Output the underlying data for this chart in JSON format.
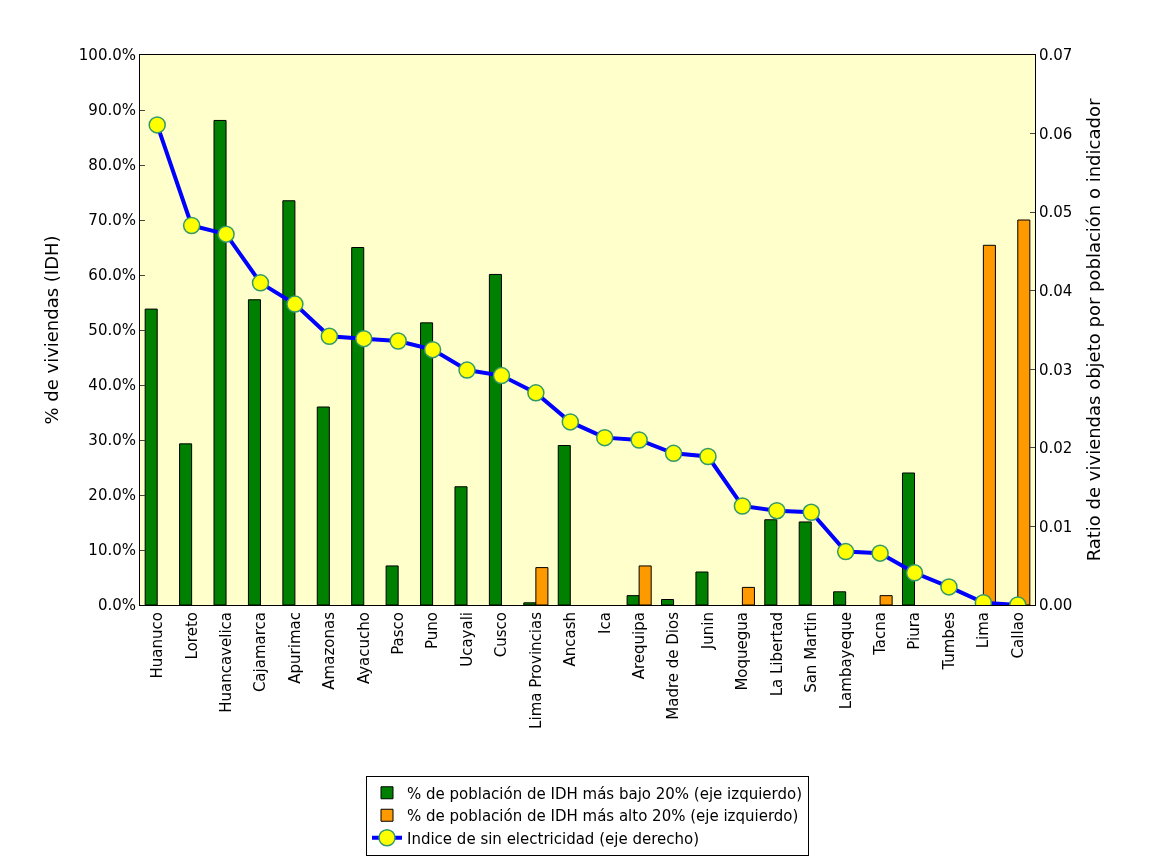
{
  "chart_data": {
    "type": "bar",
    "categories": [
      "Huanuco",
      "Loreto",
      "Huancavelica",
      "Cajamarca",
      "Apurimac",
      "Amazonas",
      "Ayacucho",
      "Pasco",
      "Puno",
      "Ucayali",
      "Cusco",
      "Lima Provincias",
      "Ancash",
      "Ica",
      "Arequipa",
      "Madre de Dios",
      "Junin",
      "Moquegua",
      "La Libertad",
      "San Martin",
      "Lambayeque",
      "Tacna",
      "Piura",
      "Tumbes",
      "Lima",
      "Callao"
    ],
    "series": [
      {
        "name": "% de población de IDH más bajo 20% (eje izquierdo)",
        "color": "#008000",
        "values": [
          53.8,
          29.3,
          88.1,
          55.5,
          73.5,
          36.0,
          65.0,
          7.1,
          51.3,
          21.5,
          60.1,
          0.4,
          29.0,
          null,
          1.7,
          1.0,
          6.0,
          null,
          15.5,
          15.1,
          2.4,
          null,
          24.0,
          null,
          null,
          null
        ]
      },
      {
        "name": "% de población de IDH más alto 20% (eje izquierdo)",
        "color": "#ff9900",
        "values": [
          null,
          null,
          null,
          null,
          null,
          null,
          null,
          null,
          null,
          null,
          null,
          6.8,
          null,
          null,
          7.1,
          null,
          null,
          3.2,
          null,
          null,
          null,
          1.7,
          null,
          null,
          65.4,
          70.0
        ]
      },
      {
        "name": "Indice de sin electricidad (eje derecho)",
        "type": "line",
        "axis": "y2",
        "color": "#0000ff",
        "marker": "circle",
        "values": [
          0.0611,
          0.0483,
          0.0472,
          0.041,
          0.0383,
          0.0342,
          0.0339,
          0.0336,
          0.0325,
          0.0299,
          0.0292,
          0.027,
          0.0233,
          0.0213,
          0.021,
          0.0193,
          0.0189,
          0.0126,
          0.012,
          0.0118,
          0.0068,
          0.0066,
          0.0041,
          0.0023,
          0.0003,
          0.0
        ]
      }
    ],
    "ylabel": "% de viviendas (IDH)",
    "y2label": "Ratio de viviendas objeto por población o indicador",
    "ylim": [
      0,
      100
    ],
    "yticks": [
      {
        "value": 0,
        "label": "0.0%"
      },
      {
        "value": 10,
        "label": "10.0%"
      },
      {
        "value": 20,
        "label": "20.0%"
      },
      {
        "value": 30,
        "label": "30.0%"
      },
      {
        "value": 40,
        "label": "40.0%"
      },
      {
        "value": 50,
        "label": "50.0%"
      },
      {
        "value": 60,
        "label": "60.0%"
      },
      {
        "value": 70,
        "label": "70.0%"
      },
      {
        "value": 80,
        "label": "80.0%"
      },
      {
        "value": 90,
        "label": "90.0%"
      },
      {
        "value": 100,
        "label": "100.0%"
      }
    ],
    "y2lim": [
      0,
      0.07
    ],
    "y2ticks": [
      {
        "value": 0,
        "label": "0.00"
      },
      0.01,
      0.02,
      0.03,
      0.04,
      0.05,
      0.06,
      0.07
    ],
    "grid": false,
    "legend": "bottom"
  }
}
